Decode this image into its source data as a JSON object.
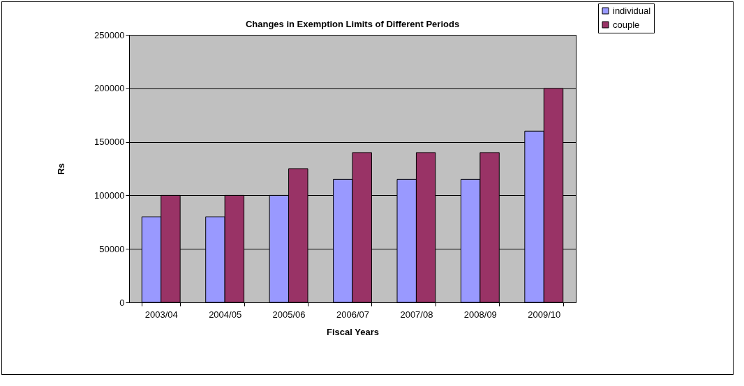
{
  "chart_data": {
    "type": "bar",
    "title": "Changes in Exemption Limits of Different Periods",
    "xlabel": "Fiscal Years",
    "ylabel": "Rs",
    "categories": [
      "2003/04",
      "2004/05",
      "2005/06",
      "2006/07",
      "2007/08",
      "2008/09",
      "2009/10"
    ],
    "series": [
      {
        "name": "individual",
        "color": "#9999ff",
        "values": [
          80000,
          80000,
          100000,
          115000,
          115000,
          115000,
          160000
        ]
      },
      {
        "name": "couple",
        "color": "#993366",
        "values": [
          100000,
          100000,
          125000,
          140000,
          140000,
          140000,
          200000
        ]
      }
    ],
    "ylim": [
      0,
      250000
    ],
    "yticks": [
      0,
      50000,
      100000,
      150000,
      200000,
      250000
    ],
    "grid": "y",
    "legend": "top right"
  }
}
